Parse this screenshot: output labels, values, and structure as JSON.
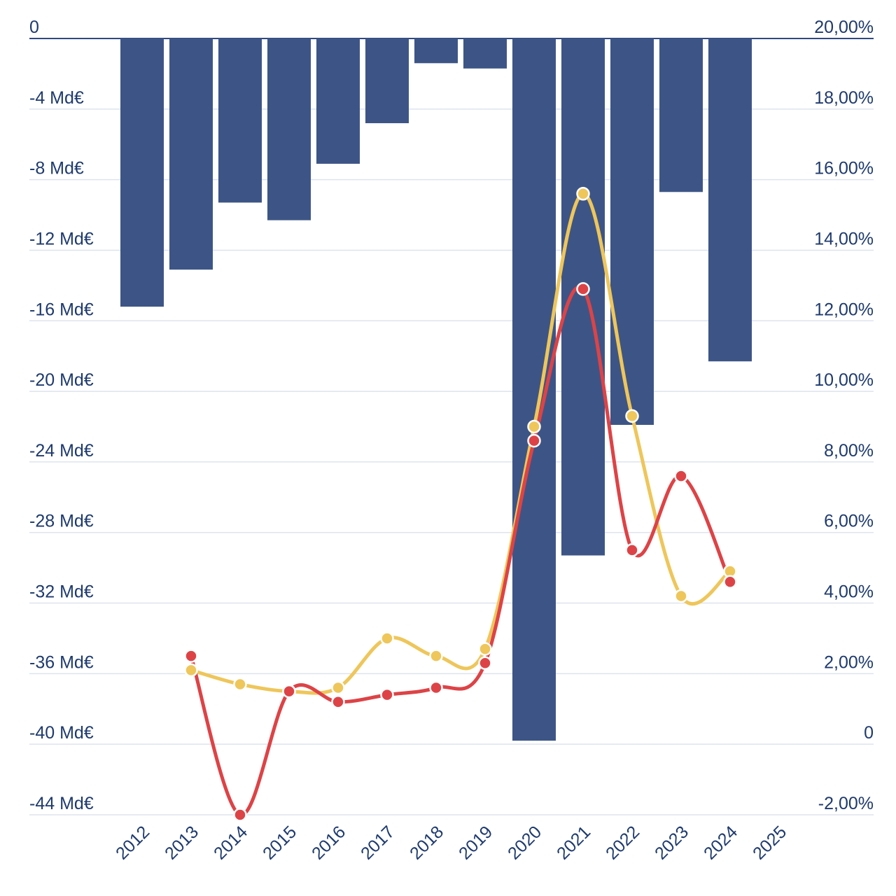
{
  "chart_data": {
    "type": "bar+line",
    "categories": [
      "2012",
      "2013",
      "2014",
      "2015",
      "2016",
      "2017",
      "2018",
      "2019",
      "2020",
      "2021",
      "2022",
      "2023",
      "2024",
      "2025"
    ],
    "left_axis": {
      "unit": "Md€",
      "ylim": [
        -44,
        0
      ],
      "ticks": [
        0,
        -4,
        -8,
        -12,
        -16,
        -20,
        -24,
        -28,
        -32,
        -36,
        -40,
        -44
      ],
      "tick_labels": [
        "0",
        "-4 Md€",
        "-8 Md€",
        "-12 Md€",
        "-16 Md€",
        "-20 Md€",
        "-24 Md€",
        "-28 Md€",
        "-32 Md€",
        "-36 Md€",
        "-40 Md€",
        "-44 Md€"
      ]
    },
    "right_axis": {
      "unit": "%",
      "ylim": [
        -2,
        20
      ],
      "tick_labels": [
        "20,00%",
        "18,00%",
        "16,00%",
        "14,00%",
        "12,00%",
        "10,00%",
        "8,00%",
        "6,00%",
        "4,00%",
        "2,00%",
        "0",
        "-2,00%"
      ]
    },
    "bars": {
      "name": "bars",
      "color": "#3d5586",
      "values": [
        -15.2,
        -13.1,
        -9.3,
        -10.3,
        -7.1,
        -4.8,
        -1.4,
        -1.7,
        -39.8,
        -29.3,
        -21.9,
        -8.7,
        -18.3,
        null
      ]
    },
    "series": [
      {
        "name": "yellow",
        "color": "#eec65a",
        "values": [
          null,
          2.1,
          1.7,
          1.5,
          1.6,
          3.0,
          2.5,
          2.7,
          9.0,
          15.6,
          9.3,
          4.2,
          4.9,
          null
        ]
      },
      {
        "name": "red",
        "color": "#dd4346",
        "values": [
          null,
          2.5,
          -2.0,
          1.5,
          1.2,
          1.4,
          1.6,
          2.3,
          8.6,
          12.9,
          5.5,
          7.6,
          4.6,
          null
        ]
      }
    ]
  }
}
